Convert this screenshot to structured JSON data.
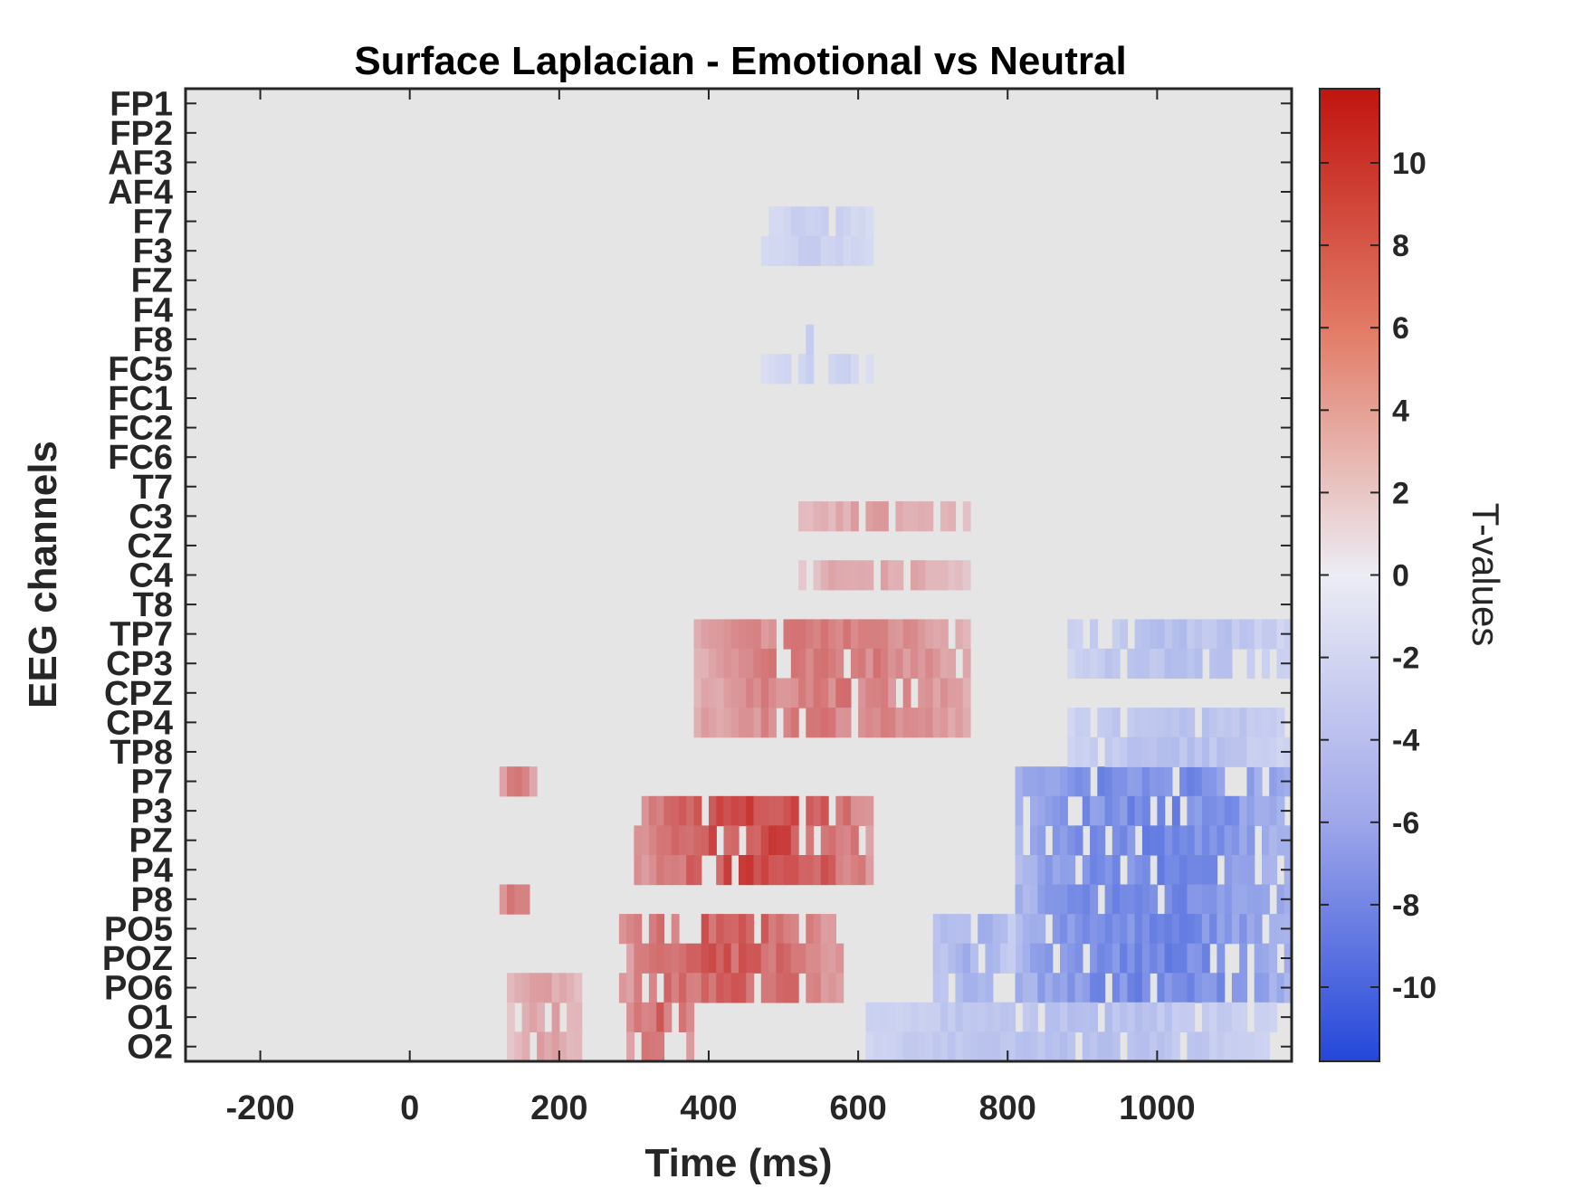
{
  "chart_data": {
    "type": "heatmap",
    "title": "Surface Laplacian - Emotional vs Neutral",
    "xlabel": "Time (ms)",
    "ylabel": "EEG channels",
    "colorbar_label": "T-values",
    "xlim": [
      -300,
      1180
    ],
    "xticks": [
      -200,
      0,
      200,
      400,
      600,
      800,
      1000
    ],
    "clim": [
      -11.8,
      11.8
    ],
    "colorbar_ticks": [
      10,
      8,
      6,
      4,
      2,
      0,
      -2,
      -4,
      -6,
      -8,
      -10
    ],
    "colormap": {
      "low": "#2447d9",
      "mid": "#ececf4",
      "high": "#c0140f"
    },
    "background_color": "#e5e5e5",
    "channels": [
      "FP1",
      "FP2",
      "AF3",
      "AF4",
      "F7",
      "F3",
      "FZ",
      "F4",
      "F8",
      "FC5",
      "FC1",
      "FC2",
      "FC6",
      "T7",
      "C3",
      "CZ",
      "C4",
      "T8",
      "TP7",
      "CP3",
      "CPZ",
      "CP4",
      "TP8",
      "P7",
      "P3",
      "PZ",
      "P4",
      "P8",
      "PO5",
      "POZ",
      "PO6",
      "O1",
      "O2"
    ],
    "clusters": [
      {
        "channels": [
          "P3",
          "PZ",
          "P4"
        ],
        "t_start": 300,
        "t_end": 620,
        "t_value": 8.5
      },
      {
        "channels": [
          "P7",
          "P8"
        ],
        "t_start": 120,
        "t_end": 170,
        "t_value": 6.5
      },
      {
        "channels": [
          "PO5",
          "POZ",
          "PO6"
        ],
        "t_start": 280,
        "t_end": 580,
        "t_value": 7.5
      },
      {
        "channels": [
          "O1",
          "O2"
        ],
        "t_start": 290,
        "t_end": 380,
        "t_value": 7
      },
      {
        "channels": [
          "PO6",
          "O1",
          "O2"
        ],
        "t_start": 130,
        "t_end": 230,
        "t_value": 4
      },
      {
        "channels": [
          "TP7",
          "CP3",
          "CPZ",
          "CP4"
        ],
        "t_start": 380,
        "t_end": 750,
        "t_value": 6
      },
      {
        "channels": [
          "C3",
          "C4"
        ],
        "t_start": 520,
        "t_end": 750,
        "t_value": 4
      },
      {
        "channels": [
          "P7",
          "P3",
          "PZ",
          "P4",
          "P8",
          "PO5",
          "POZ",
          "PO6"
        ],
        "t_start": 810,
        "t_end": 1180,
        "t_value": -7
      },
      {
        "channels": [
          "PO5",
          "POZ",
          "PO6",
          "O1",
          "O2"
        ],
        "t_start": 700,
        "t_end": 810,
        "t_value": -4
      },
      {
        "channels": [
          "O1",
          "O2"
        ],
        "t_start": 610,
        "t_end": 1160,
        "t_value": -3
      },
      {
        "channels": [
          "TP7",
          "CP3",
          "CP4",
          "TP8"
        ],
        "t_start": 880,
        "t_end": 1180,
        "t_value": -3
      },
      {
        "channels": [
          "F7",
          "F3",
          "FC5"
        ],
        "t_start": 470,
        "t_end": 620,
        "t_value": -2
      },
      {
        "channels": [
          "F8"
        ],
        "t_start": 530,
        "t_end": 550,
        "t_value": -3
      }
    ]
  }
}
